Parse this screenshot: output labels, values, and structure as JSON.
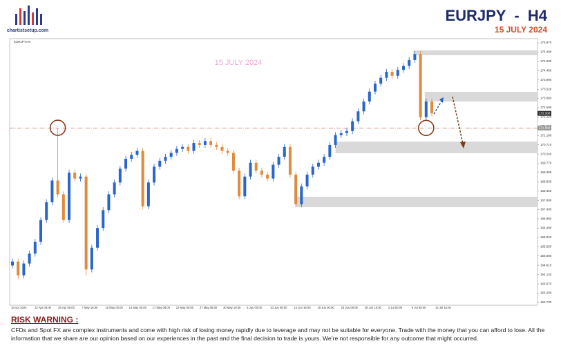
{
  "header": {
    "logo_text": "chartistsetup.com",
    "title": "EURJPY  -  H4",
    "date": "15 JULY 2024"
  },
  "chart_data": {
    "type": "candlestick",
    "symbol": "EURJPY,H4",
    "watermark": "15 JULY 2024",
    "up_color": "#2a66c9",
    "down_color": "#e08a3c",
    "ylim": [
      162.59,
      176.08
    ],
    "yticks": [
      {
        "value": 175.87,
        "label": "175.870"
      },
      {
        "value": 175.4,
        "label": "175.400"
      },
      {
        "value": 174.93,
        "label": "174.930"
      },
      {
        "value": 174.46,
        "label": "174.460"
      },
      {
        "value": 173.99,
        "label": "173.990"
      },
      {
        "value": 173.52,
        "label": "173.520"
      },
      {
        "value": 173.06,
        "label": "173.060"
      },
      {
        "value": 172.59,
        "label": "172.590"
      },
      {
        "value": 172.12,
        "label": "172.120"
      },
      {
        "value": 171.65,
        "label": "171.650"
      },
      {
        "value": 171.18,
        "label": "171.180"
      },
      {
        "value": 170.71,
        "label": "170.710"
      },
      {
        "value": 170.24,
        "label": "170.240"
      },
      {
        "value": 169.77,
        "label": "169.770"
      },
      {
        "value": 169.3,
        "label": "169.300"
      },
      {
        "value": 168.83,
        "label": "168.830"
      },
      {
        "value": 168.36,
        "label": "168.360"
      },
      {
        "value": 167.89,
        "label": "167.890"
      },
      {
        "value": 167.43,
        "label": "167.430"
      },
      {
        "value": 166.96,
        "label": "166.960"
      },
      {
        "value": 166.49,
        "label": "166.490"
      },
      {
        "value": 166.02,
        "label": "166.020"
      },
      {
        "value": 165.55,
        "label": "165.550"
      },
      {
        "value": 165.08,
        "label": "165.080"
      },
      {
        "value": 164.61,
        "label": "164.610"
      },
      {
        "value": 164.14,
        "label": "164.140"
      },
      {
        "value": 163.67,
        "label": "163.670"
      },
      {
        "value": 163.2,
        "label": "163.200"
      },
      {
        "value": 162.73,
        "label": "162.730"
      }
    ],
    "x_labels": [
      "18 Apr 2024",
      "22 Apr 08:00",
      "26 Apr 00:00",
      "7 May 16:00",
      "10 May 00:00",
      "14 May 00:00",
      "17 May 08:00",
      "22 May 00:00",
      "27 May 08:00",
      "30 May 16:00",
      "5 Jun 00:00",
      "10 Jun 08:00",
      "14 Jun 16:00",
      "19 Jun 00:00",
      "25 Jun 08:00",
      "28 Jun 16:00",
      "4 Jul 00:00",
      "9 Jul 08:00",
      "12 Jul 16:00"
    ],
    "open": [
      164.6,
      164.8,
      164.1,
      164.7,
      165.2,
      165.8,
      166.9,
      167.8,
      168.9,
      168.2,
      166.9,
      169.3,
      169.0,
      169.1,
      164.4,
      165.5,
      166.5,
      167.4,
      168.2,
      168.8,
      169.5,
      170.0,
      170.2,
      170.4,
      167.6,
      168.8,
      169.6,
      169.9,
      170.1,
      170.3,
      170.5,
      170.6,
      170.4,
      170.8,
      170.7,
      170.9,
      170.7,
      170.6,
      170.4,
      170.3,
      169.4,
      168.1,
      169.1,
      169.8,
      169.4,
      169.2,
      169.0,
      169.7,
      170.1,
      170.6,
      169.2,
      167.7,
      168.6,
      169.2,
      169.6,
      169.8,
      170.1,
      170.7,
      171.2,
      171.3,
      171.4,
      171.9,
      172.4,
      172.9,
      173.4,
      173.8,
      174.1,
      174.4,
      174.2,
      174.5,
      174.7,
      175.0,
      175.3,
      172.1,
      172.9
    ],
    "high": [
      164.95,
      164.95,
      164.85,
      165.35,
      165.95,
      167.05,
      167.95,
      169.05,
      171.57,
      168.35,
      169.45,
      169.45,
      169.25,
      169.25,
      165.65,
      166.65,
      167.55,
      168.35,
      168.95,
      169.65,
      170.15,
      170.35,
      170.55,
      170.55,
      168.95,
      169.75,
      170.05,
      170.25,
      170.45,
      170.65,
      170.75,
      170.75,
      170.95,
      170.95,
      171.05,
      171.05,
      170.85,
      170.75,
      170.55,
      170.45,
      169.55,
      169.25,
      169.95,
      169.95,
      169.55,
      169.35,
      169.85,
      170.25,
      170.75,
      170.75,
      169.35,
      168.75,
      169.35,
      169.75,
      169.95,
      170.25,
      170.85,
      171.35,
      171.45,
      171.55,
      172.05,
      172.55,
      173.05,
      173.55,
      173.95,
      174.25,
      174.55,
      174.55,
      174.65,
      174.85,
      175.15,
      175.45,
      175.45,
      173.05,
      173.05
    ],
    "low": [
      164.45,
      163.9,
      163.95,
      164.55,
      165.05,
      165.65,
      166.75,
      167.65,
      168.05,
      166.75,
      166.75,
      168.85,
      168.85,
      164.1,
      164.25,
      165.35,
      166.35,
      167.25,
      168.05,
      168.65,
      169.35,
      169.85,
      170.05,
      167.45,
      167.45,
      168.65,
      169.45,
      169.75,
      169.95,
      170.15,
      170.35,
      170.25,
      170.25,
      170.55,
      170.55,
      170.55,
      170.45,
      170.25,
      170.15,
      169.25,
      167.95,
      167.95,
      168.95,
      169.25,
      169.05,
      168.85,
      168.85,
      169.55,
      169.95,
      169.05,
      167.55,
      167.55,
      168.45,
      169.05,
      169.45,
      169.65,
      169.95,
      170.55,
      171.05,
      171.15,
      171.25,
      171.75,
      172.25,
      172.75,
      173.25,
      173.65,
      173.95,
      174.05,
      174.05,
      174.35,
      174.55,
      174.85,
      171.95,
      171.95,
      172.15
    ],
    "close": [
      164.8,
      164.1,
      164.7,
      165.2,
      165.8,
      166.9,
      167.8,
      168.9,
      168.2,
      166.9,
      169.3,
      169.0,
      169.1,
      164.4,
      165.5,
      166.5,
      167.4,
      168.2,
      168.8,
      169.5,
      170.0,
      170.2,
      170.4,
      167.6,
      168.8,
      169.6,
      169.9,
      170.1,
      170.3,
      170.5,
      170.6,
      170.4,
      170.8,
      170.7,
      170.9,
      170.7,
      170.6,
      170.4,
      170.3,
      169.4,
      168.1,
      169.1,
      169.8,
      169.4,
      169.2,
      169.0,
      169.7,
      170.1,
      170.6,
      169.2,
      167.7,
      168.6,
      169.2,
      169.6,
      169.8,
      170.1,
      170.7,
      171.2,
      171.3,
      171.4,
      171.9,
      172.4,
      172.9,
      173.4,
      173.8,
      174.1,
      174.4,
      174.2,
      174.5,
      174.7,
      175.0,
      175.3,
      172.1,
      172.9,
      172.3
    ],
    "zones": [
      {
        "from": 175.24,
        "to": 175.49
      },
      {
        "from": 172.9,
        "to": 173.39
      },
      {
        "from": 170.28,
        "to": 170.87
      },
      {
        "from": 167.55,
        "to": 168.08
      }
    ],
    "level": {
      "value": 171.56,
      "label": "171.560"
    },
    "last": {
      "value": 172.3,
      "label": "172.300"
    }
  },
  "risk_warning": {
    "title": "RISK WARNING :",
    "text": "CFDs and Spot FX are complex instruments and come with high risk of losing money rapidly due to leverage and may not be suitable for everyone. Trade with the money that you can afford to lose. All the information that we share are our opinion based on our experiences in the past and the final decision to trade is yours. We’re not responsible for any outcome that might occurred."
  }
}
